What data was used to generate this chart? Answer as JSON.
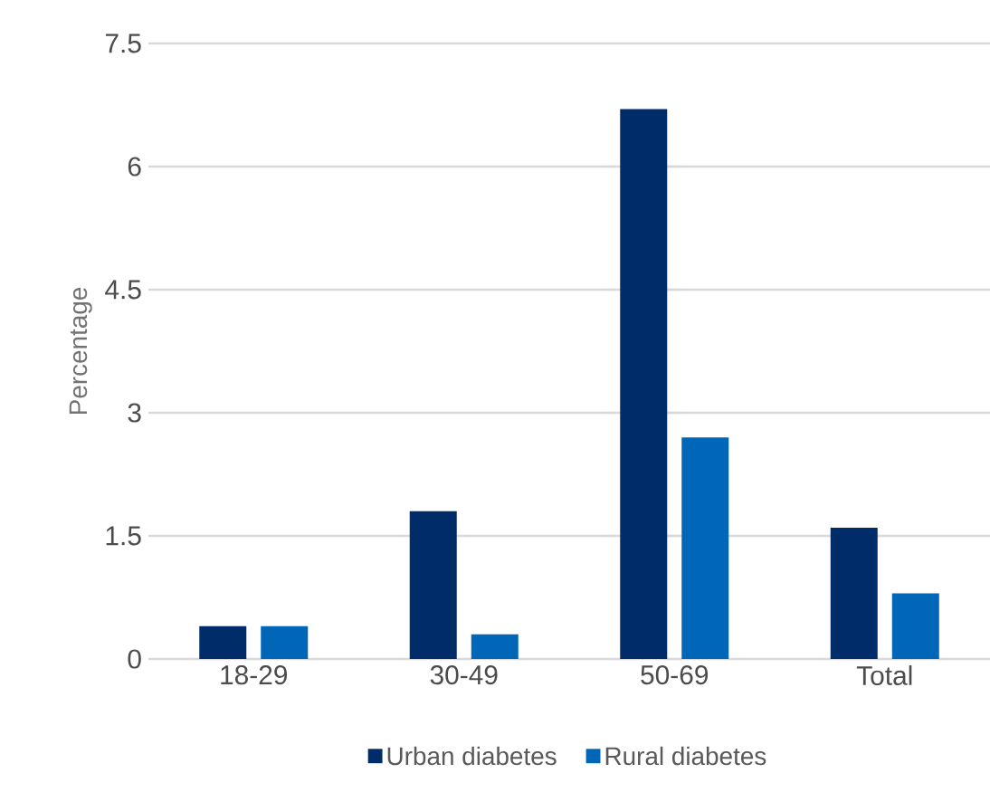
{
  "chart_data": {
    "type": "bar",
    "ylabel": "Percentage",
    "categories": [
      "18-29",
      "30-49",
      "50-69",
      "Total"
    ],
    "series": [
      {
        "name": "Urban diabetes",
        "color": "#002d6a",
        "values": [
          0.4,
          1.8,
          6.7,
          1.6
        ]
      },
      {
        "name": "Rural diabetes",
        "color": "#0066b8",
        "values": [
          0.4,
          0.3,
          2.7,
          0.8
        ]
      }
    ],
    "ylim": [
      0,
      7.5
    ],
    "yticks": [
      0,
      1.5,
      3,
      4.5,
      6,
      7.5
    ],
    "grid": "y",
    "legend": "bottom"
  }
}
